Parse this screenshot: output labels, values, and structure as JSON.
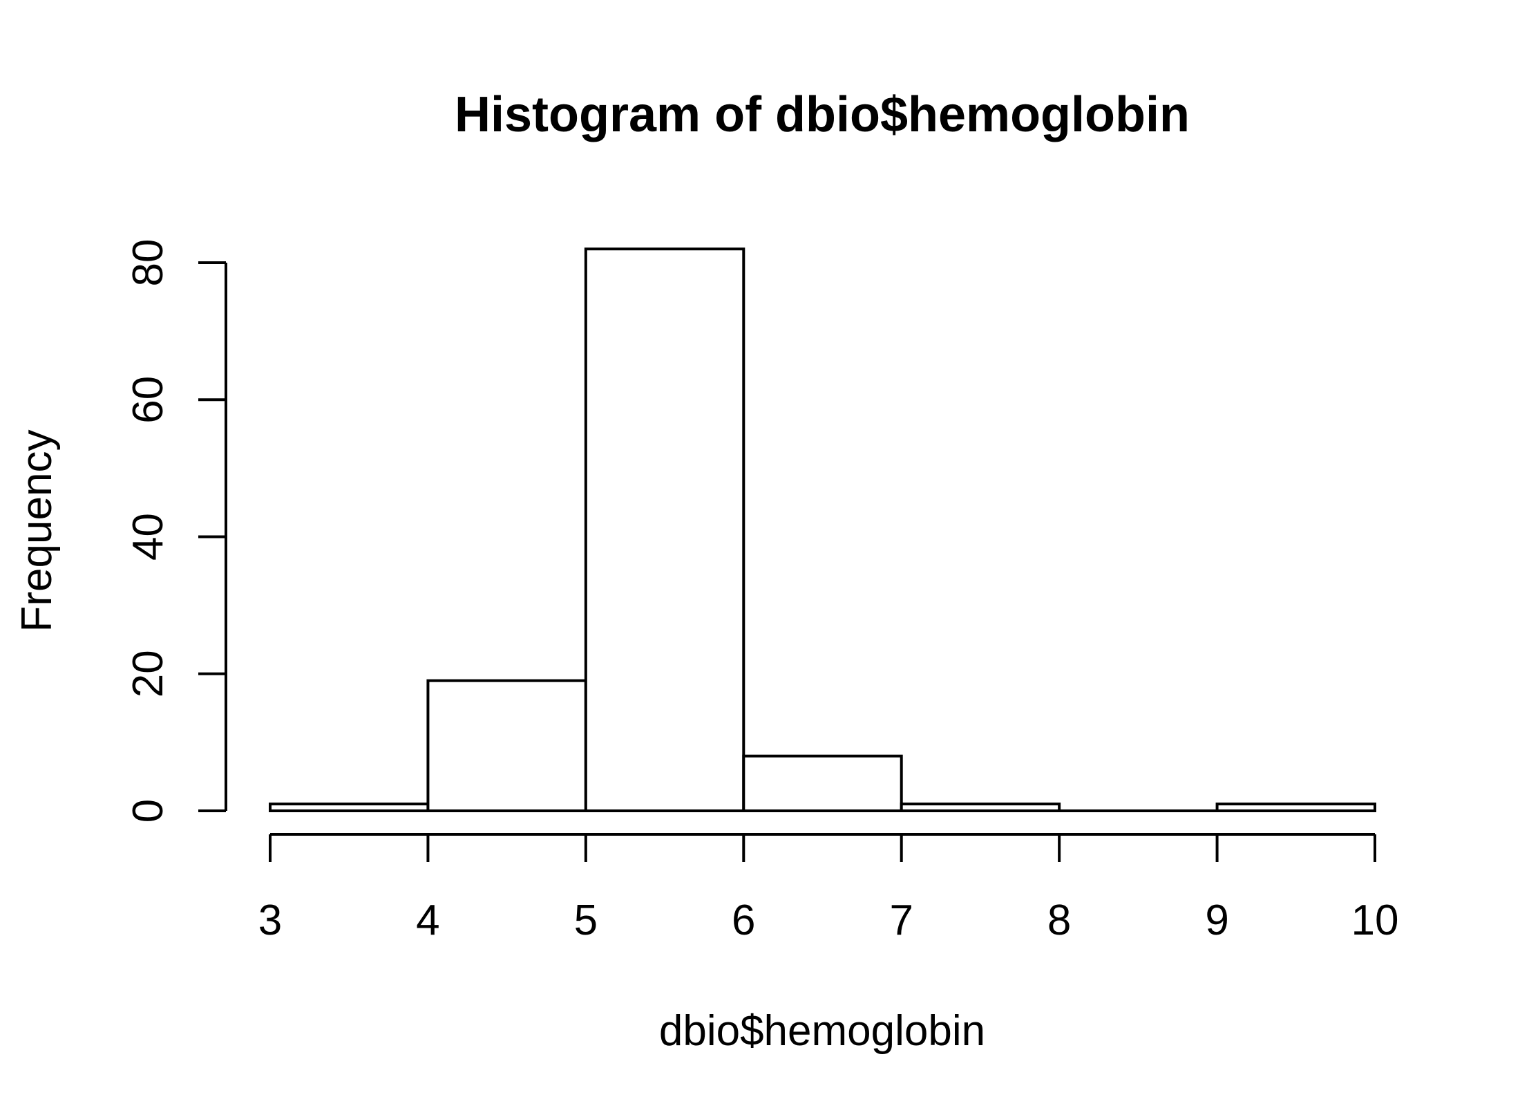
{
  "chart_data": {
    "type": "bar",
    "subtype": "histogram",
    "title": "Histogram of dbio$hemoglobin",
    "xlabel": "dbio$hemoglobin",
    "ylabel": "Frequency",
    "bins": [
      {
        "x0": 3,
        "x1": 4,
        "count": 1
      },
      {
        "x0": 4,
        "x1": 5,
        "count": 19
      },
      {
        "x0": 5,
        "x1": 6,
        "count": 82
      },
      {
        "x0": 6,
        "x1": 7,
        "count": 8
      },
      {
        "x0": 7,
        "x1": 8,
        "count": 1
      },
      {
        "x0": 8,
        "x1": 9,
        "count": 0
      },
      {
        "x0": 9,
        "x1": 10,
        "count": 1
      }
    ],
    "xlim": [
      3,
      10
    ],
    "ylim": [
      0,
      80
    ],
    "x_ticks": [
      "3",
      "4",
      "5",
      "6",
      "7",
      "8",
      "9",
      "10"
    ],
    "y_ticks": [
      "0",
      "20",
      "40",
      "60",
      "80"
    ],
    "bar_fill": "#ffffff",
    "bar_stroke": "#000000",
    "grid": false,
    "legend": "none"
  }
}
